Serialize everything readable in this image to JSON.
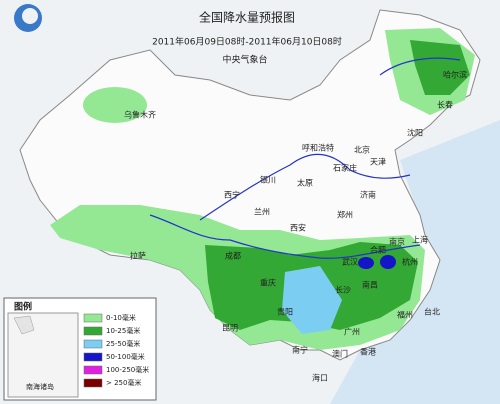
{
  "header": {
    "title": "全国降水量预报图",
    "period": "2011年06月09日08时-2011年06月10日08时",
    "agency": "中央气象台"
  },
  "cities": [
    "乌鲁木齐",
    "哈尔滨",
    "长春",
    "沈阳",
    "呼和浩特",
    "北京",
    "天津",
    "石家庄",
    "太原",
    "银川",
    "西宁",
    "兰州",
    "济南",
    "郑州",
    "西安",
    "拉萨",
    "成都",
    "重庆",
    "武汉",
    "合肥",
    "南京",
    "上海",
    "杭州",
    "长沙",
    "南昌",
    "贵阳",
    "昆明",
    "福州",
    "台北",
    "广州",
    "南宁",
    "香港",
    "澳门",
    "海口"
  ],
  "legend": {
    "title": "图例",
    "inset_label": "南海诸岛",
    "items": [
      {
        "label": "0-10毫米",
        "color": "#94e894"
      },
      {
        "label": "10-25毫米",
        "color": "#34a834"
      },
      {
        "label": "25-50毫米",
        "color": "#7ccdf2"
      },
      {
        "label": "50-100毫米",
        "color": "#1414c8"
      },
      {
        "label": "100-250毫米",
        "color": "#e020e0"
      },
      {
        "label": "> 250毫米",
        "color": "#7a0000"
      }
    ]
  }
}
